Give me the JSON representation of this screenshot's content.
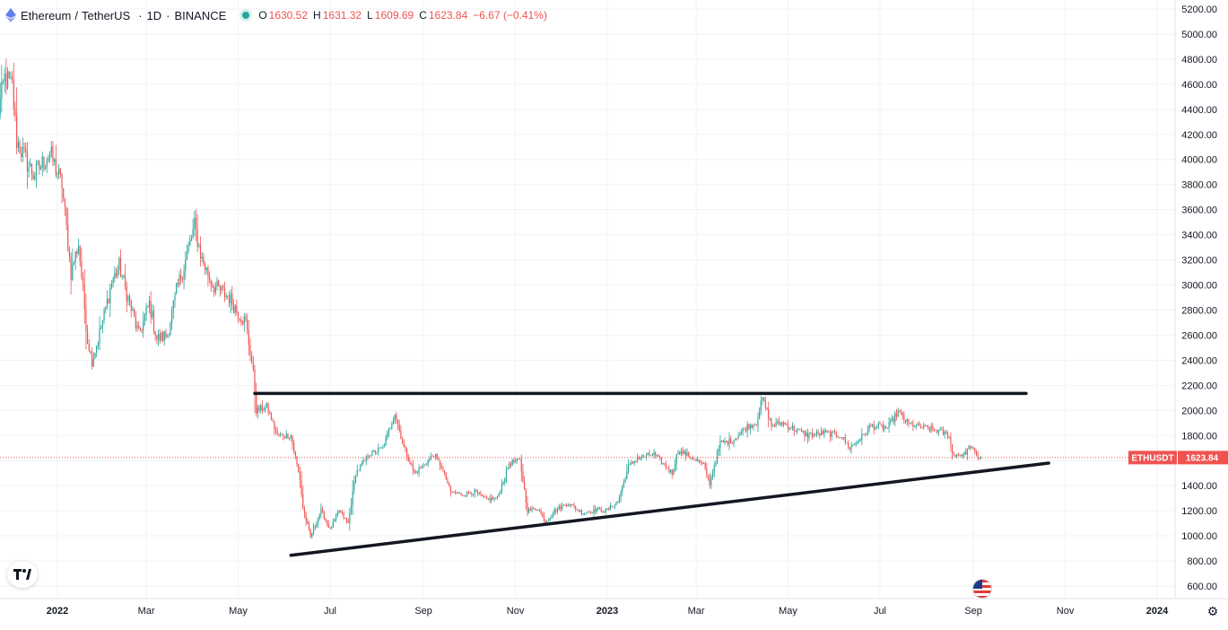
{
  "legend": {
    "symbol": "Ethereum",
    "quote": "TetherUS",
    "interval": "1D",
    "exchange": "BINANCE",
    "o_label": "O",
    "o_value": "1630.52",
    "h_label": "H",
    "h_value": "1631.32",
    "l_label": "L",
    "l_value": "1609.69",
    "c_label": "C",
    "c_value": "1623.84",
    "change": "−6.67 (−0.41%)"
  },
  "price_tag": {
    "ticker": "ETHUSDT",
    "price": "1623.84"
  },
  "icons": [
    "ethereum-coin-icon",
    "market-open-dot-icon",
    "tradingview-logo-icon",
    "us-flag-icon",
    "settings-gear-icon"
  ],
  "colors": {
    "up": "#26a69a",
    "down": "#ef5350",
    "trendline": "#131722",
    "price_line": "#ef5350",
    "axis_text": "#131722"
  },
  "chart_data": {
    "type": "candlestick",
    "interval": "1D",
    "scale": "linear",
    "ylim": [
      560,
      5230
    ],
    "y_ticks": [
      "5200.00",
      "5000.00",
      "4800.00",
      "4600.00",
      "4400.00",
      "4200.00",
      "4000.00",
      "3800.00",
      "3600.00",
      "3400.00",
      "3200.00",
      "3000.00",
      "2800.00",
      "2600.00",
      "2400.00",
      "2200.00",
      "2000.00",
      "1800.00",
      "1600.00",
      "1400.00",
      "1200.00",
      "1000.00",
      "800.00",
      "600.00"
    ],
    "y_tick_values": [
      5200,
      5000,
      4800,
      4600,
      4400,
      4200,
      4000,
      3800,
      3600,
      3400,
      3200,
      3000,
      2800,
      2600,
      2400,
      2200,
      2000,
      1800,
      1600,
      1400,
      1200,
      1000,
      800,
      600
    ],
    "x_ticks": [
      "2022",
      "Mar",
      "May",
      "Jul",
      "Sep",
      "Nov",
      "2023",
      "Mar",
      "May",
      "Jul",
      "Sep",
      "Nov",
      "2024"
    ],
    "x_tick_dates": [
      "2022-01-01",
      "2022-03-01",
      "2022-05-01",
      "2022-07-01",
      "2022-09-01",
      "2022-11-01",
      "2023-01-01",
      "2023-03-01",
      "2023-05-01",
      "2023-07-01",
      "2023-09-01",
      "2023-11-01",
      "2024-01-01"
    ],
    "xlim": [
      "2021-11-22",
      "2024-01-25"
    ],
    "grid": true,
    "last_price": 1623.84,
    "price_anchors": [
      [
        "2021-11-22",
        4330
      ],
      [
        "2021-11-27",
        4650
      ],
      [
        "2021-12-02",
        4580
      ],
      [
        "2021-12-05",
        4150
      ],
      [
        "2021-12-10",
        4020
      ],
      [
        "2021-12-16",
        3880
      ],
      [
        "2021-12-21",
        3950
      ],
      [
        "2021-12-27",
        4050
      ],
      [
        "2022-01-04",
        3800
      ],
      [
        "2022-01-10",
        3100
      ],
      [
        "2022-01-15",
        3330
      ],
      [
        "2022-01-21",
        2560
      ],
      [
        "2022-01-24",
        2380
      ],
      [
        "2022-02-01",
        2760
      ],
      [
        "2022-02-06",
        3020
      ],
      [
        "2022-02-11",
        3150
      ],
      [
        "2022-02-18",
        2850
      ],
      [
        "2022-02-24",
        2600
      ],
      [
        "2022-03-03",
        2850
      ],
      [
        "2022-03-08",
        2570
      ],
      [
        "2022-03-15",
        2600
      ],
      [
        "2022-03-21",
        2950
      ],
      [
        "2022-03-26",
        3150
      ],
      [
        "2022-04-02",
        3470
      ],
      [
        "2022-04-07",
        3200
      ],
      [
        "2022-04-14",
        3000
      ],
      [
        "2022-04-25",
        2900
      ],
      [
        "2022-04-30",
        2800
      ],
      [
        "2022-05-06",
        2700
      ],
      [
        "2022-05-11",
        2300
      ],
      [
        "2022-05-13",
        2000
      ],
      [
        "2022-05-20",
        2030
      ],
      [
        "2022-05-27",
        1800
      ],
      [
        "2022-06-05",
        1800
      ],
      [
        "2022-06-11",
        1450
      ],
      [
        "2022-06-13",
        1220
      ],
      [
        "2022-06-18",
        990
      ],
      [
        "2022-06-25",
        1200
      ],
      [
        "2022-07-01",
        1050
      ],
      [
        "2022-07-07",
        1200
      ],
      [
        "2022-07-13",
        1100
      ],
      [
        "2022-07-18",
        1500
      ],
      [
        "2022-07-27",
        1650
      ],
      [
        "2022-08-05",
        1700
      ],
      [
        "2022-08-13",
        1980
      ],
      [
        "2022-08-19",
        1700
      ],
      [
        "2022-08-26",
        1500
      ],
      [
        "2022-09-01",
        1560
      ],
      [
        "2022-09-08",
        1650
      ],
      [
        "2022-09-13",
        1550
      ],
      [
        "2022-09-19",
        1350
      ],
      [
        "2022-09-27",
        1330
      ],
      [
        "2022-10-05",
        1350
      ],
      [
        "2022-10-12",
        1290
      ],
      [
        "2022-10-20",
        1300
      ],
      [
        "2022-10-28",
        1580
      ],
      [
        "2022-11-04",
        1600
      ],
      [
        "2022-11-09",
        1200
      ],
      [
        "2022-11-16",
        1220
      ],
      [
        "2022-11-21",
        1110
      ],
      [
        "2022-11-27",
        1200
      ],
      [
        "2022-12-06",
        1260
      ],
      [
        "2022-12-16",
        1180
      ],
      [
        "2022-12-25",
        1210
      ],
      [
        "2022-12-31",
        1200
      ],
      [
        "2023-01-08",
        1270
      ],
      [
        "2023-01-15",
        1550
      ],
      [
        "2023-01-21",
        1620
      ],
      [
        "2023-02-01",
        1650
      ],
      [
        "2023-02-13",
        1500
      ],
      [
        "2023-02-17",
        1680
      ],
      [
        "2023-02-27",
        1620
      ],
      [
        "2023-03-06",
        1560
      ],
      [
        "2023-03-10",
        1420
      ],
      [
        "2023-03-17",
        1740
      ],
      [
        "2023-03-25",
        1760
      ],
      [
        "2023-04-04",
        1870
      ],
      [
        "2023-04-10",
        1900
      ],
      [
        "2023-04-14",
        2100
      ],
      [
        "2023-04-20",
        1880
      ],
      [
        "2023-04-27",
        1900
      ],
      [
        "2023-05-07",
        1840
      ],
      [
        "2023-05-14",
        1800
      ],
      [
        "2023-05-25",
        1820
      ],
      [
        "2023-06-05",
        1800
      ],
      [
        "2023-06-11",
        1700
      ],
      [
        "2023-06-20",
        1800
      ],
      [
        "2023-06-25",
        1880
      ],
      [
        "2023-07-06",
        1860
      ],
      [
        "2023-07-13",
        1990
      ],
      [
        "2023-07-20",
        1890
      ],
      [
        "2023-07-31",
        1860
      ],
      [
        "2023-08-08",
        1840
      ],
      [
        "2023-08-16",
        1800
      ],
      [
        "2023-08-18",
        1650
      ],
      [
        "2023-08-26",
        1650
      ],
      [
        "2023-08-30",
        1720
      ],
      [
        "2023-09-03",
        1634
      ],
      [
        "2023-09-06",
        1624
      ]
    ],
    "trendlines": [
      {
        "name": "resistance",
        "start": [
          "2022-05-12",
          2135
        ],
        "end": [
          "2023-10-06",
          2135
        ]
      },
      {
        "name": "support",
        "start": [
          "2022-06-05",
          845
        ],
        "end": [
          "2023-10-21",
          1580
        ]
      }
    ],
    "price_line": {
      "value": 1623.84,
      "style": "dotted"
    }
  }
}
